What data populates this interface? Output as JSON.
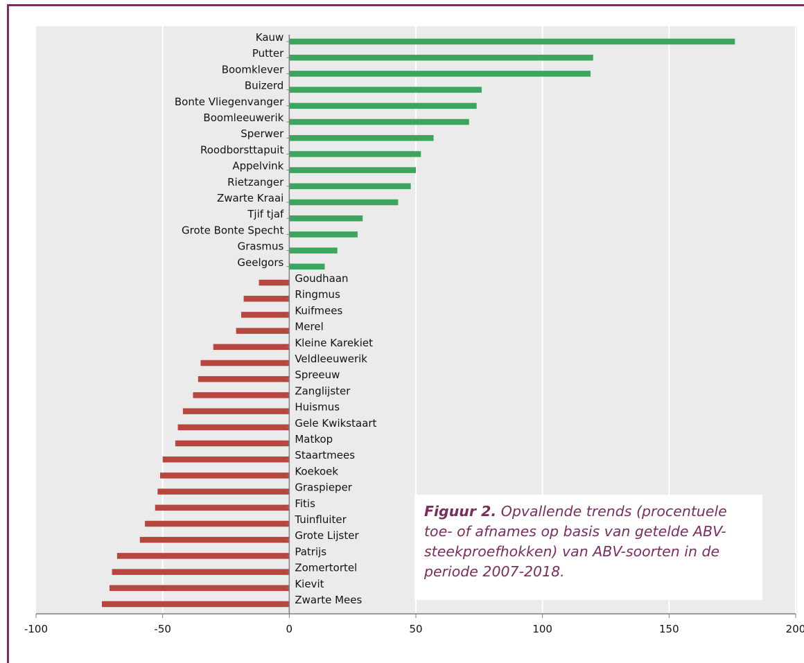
{
  "chart_data": {
    "type": "bar",
    "orientation": "horizontal",
    "categories": [
      "Kauw",
      "Putter",
      "Boomklever",
      "Buizerd",
      "Bonte Vliegenvanger",
      "Boomleeuwerik",
      "Sperwer",
      "Roodborsttapuit",
      "Appelvink",
      "Rietzanger",
      "Zwarte Kraai",
      "Tjif tjaf",
      "Grote Bonte Specht",
      "Grasmus",
      "Geelgors",
      "Goudhaan",
      "Ringmus",
      "Kuifmees",
      "Merel",
      "Kleine Karekiet",
      "Veldleeuwerik",
      "Spreeuw",
      "Zanglijster",
      "Huismus",
      "Gele Kwikstaart",
      "Matkop",
      "Staartmees",
      "Koekoek",
      "Graspieper",
      "Fitis",
      "Tuinfluiter",
      "Grote Lijster",
      "Patrijs",
      "Zomertortel",
      "Kievit",
      "Zwarte Mees"
    ],
    "values": [
      176,
      120,
      119,
      76,
      74,
      71,
      57,
      52,
      50,
      48,
      43,
      29,
      27,
      19,
      14,
      -12,
      -18,
      -19,
      -21,
      -30,
      -35,
      -36,
      -38,
      -42,
      -44,
      -45,
      -50,
      -51,
      -52,
      -53,
      -57,
      -59,
      -68,
      -70,
      -71,
      -74
    ],
    "xlim": [
      -100,
      200
    ],
    "xticks": [
      "-100",
      "-50",
      "0",
      "50",
      "100",
      "150",
      "200"
    ],
    "positive_color": "#3da55e",
    "negative_color": "#b5473f",
    "grid": true,
    "background": "#ebebeb"
  },
  "caption": {
    "label": "Figuur 2.",
    "text": " Opvallende trends (procentuele toe- of afnames op basis van getelde ABV-steekproefhokken) van ABV-soorten in de periode 2007-2018."
  }
}
